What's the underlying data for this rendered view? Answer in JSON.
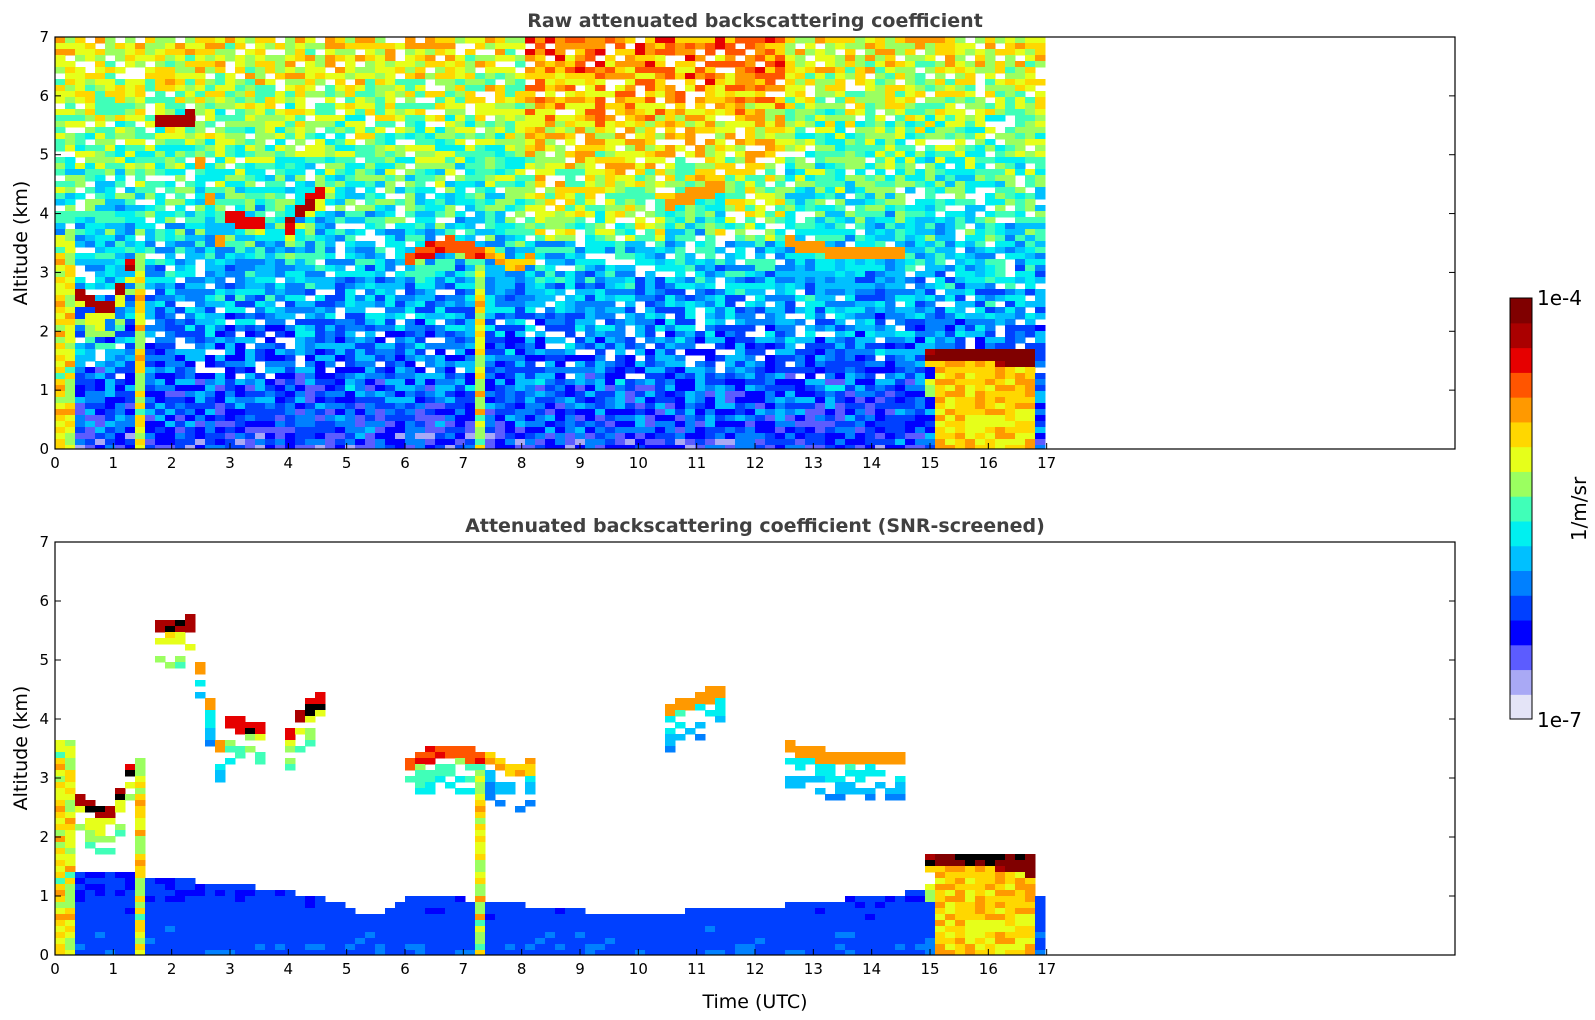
{
  "chart_data": [
    {
      "type": "heatmap",
      "title": "Raw attenuated backscattering coefficient",
      "xlabel": "",
      "ylabel": "Altitude (km)",
      "xlim": [
        0,
        24
      ],
      "ylim": [
        0,
        7
      ],
      "x_ticks": [
        "0",
        "1",
        "2",
        "3",
        "4",
        "5",
        "6",
        "7",
        "8",
        "9",
        "10",
        "11",
        "12",
        "13",
        "14",
        "15",
        "16",
        "17"
      ],
      "y_ticks": [
        "0",
        "1",
        "2",
        "3",
        "4",
        "5",
        "6",
        "7"
      ],
      "data_extent_hours": [
        0,
        16.8
      ],
      "missing_data_column_hour": 12,
      "layers": [
        {
          "t0": 0.35,
          "t1": 1.45,
          "z_start": 2.65,
          "z_mid": 2.3,
          "z_end": 3.45,
          "level": 0.9
        },
        {
          "t0": 1.75,
          "t1": 2.45,
          "z_start": 5.55,
          "z_mid": 5.6,
          "z_end": 5.65,
          "level": 0.92
        },
        {
          "t0": 2.4,
          "t1": 2.9,
          "z_start": 5.2,
          "z_mid": 4.3,
          "z_end": 3.2,
          "level": 0.72
        },
        {
          "t0": 3.0,
          "t1": 3.6,
          "z_start": 3.95,
          "z_mid": 3.85,
          "z_end": 3.8,
          "level": 0.85
        },
        {
          "t0": 4.0,
          "t1": 4.6,
          "z_start": 3.75,
          "z_mid": 4.15,
          "z_end": 4.35,
          "level": 0.88
        },
        {
          "t0": 6.0,
          "t1": 7.4,
          "z_start": 3.2,
          "z_mid": 3.5,
          "z_end": 3.3,
          "level": 0.8
        },
        {
          "t0": 7.4,
          "t1": 8.2,
          "z_start": 3.4,
          "z_mid": 3.1,
          "z_end": 3.2,
          "level": 0.68
        },
        {
          "t0": 10.4,
          "t1": 11.4,
          "z_start": 4.1,
          "z_mid": 4.3,
          "z_end": 4.45,
          "level": 0.72
        },
        {
          "t0": 12.6,
          "t1": 14.5,
          "z_start": 3.5,
          "z_mid": 3.3,
          "z_end": 3.35,
          "level": 0.72
        },
        {
          "t0": 14.9,
          "t1": 16.8,
          "z_start": 1.6,
          "z_mid": 1.6,
          "z_end": 1.45,
          "level": 0.95
        }
      ],
      "fallstreaks": [
        {
          "t": 0.05,
          "w": 0.12,
          "ztop": 3.6
        },
        {
          "t": 0.25,
          "w": 0.1,
          "ztop": 3.6
        },
        {
          "t": 1.45,
          "w": 0.14,
          "ztop": 3.3
        },
        {
          "t": 3.6,
          "w": 0.12,
          "ztop": 3.4
        },
        {
          "t": 6.55,
          "w": 0.08,
          "ztop": 2.0
        },
        {
          "t": 6.85,
          "w": 0.14,
          "ztop": 3.5
        },
        {
          "t": 7.3,
          "w": 0.12,
          "ztop": 3.4
        }
      ],
      "block_hours": [
        15.1,
        16.8
      ],
      "block_top_km": 1.6
    },
    {
      "type": "heatmap",
      "title": "Attenuated backscattering coefficient (SNR-screened)",
      "xlabel": "Time (UTC)",
      "ylabel": "Altitude (km)",
      "xlim": [
        0,
        24
      ],
      "ylim": [
        0,
        7
      ],
      "x_ticks": [
        "0",
        "1",
        "2",
        "3",
        "4",
        "5",
        "6",
        "7",
        "8",
        "9",
        "10",
        "11",
        "12",
        "13",
        "14",
        "15",
        "16",
        "17"
      ],
      "y_ticks": [
        "0",
        "1",
        "2",
        "3",
        "4",
        "5",
        "6",
        "7"
      ],
      "data_extent_hours": [
        0,
        16.8
      ],
      "missing_data_column_hour": 12,
      "screened_boundary_layer_top_km": [
        [
          0,
          1.5
        ],
        [
          1,
          1.4
        ],
        [
          2,
          1.3
        ],
        [
          3,
          1.2
        ],
        [
          4,
          1.1
        ],
        [
          5,
          0.85
        ],
        [
          5.3,
          0.6
        ],
        [
          6,
          0.95
        ],
        [
          7,
          0.95
        ],
        [
          8,
          0.85
        ],
        [
          9,
          0.75
        ],
        [
          10,
          0.72
        ],
        [
          11,
          0.75
        ],
        [
          12,
          0.8
        ],
        [
          13,
          0.88
        ],
        [
          14,
          1.0
        ],
        [
          15,
          1.1
        ],
        [
          16.8,
          1.2
        ]
      ]
    }
  ],
  "colorbar": {
    "label": "1/m/sr",
    "max_label": "1e-4",
    "min_label": "1e-7",
    "colors": [
      "#e4e4f7",
      "#a9a9f5",
      "#5c5cff",
      "#0000ff",
      "#0040ff",
      "#0080ff",
      "#00c0ff",
      "#00f0f0",
      "#40ffb8",
      "#9bff60",
      "#e6ff1a",
      "#ffd700",
      "#ff9900",
      "#ff5500",
      "#e60000",
      "#aa0000",
      "#800000"
    ]
  }
}
